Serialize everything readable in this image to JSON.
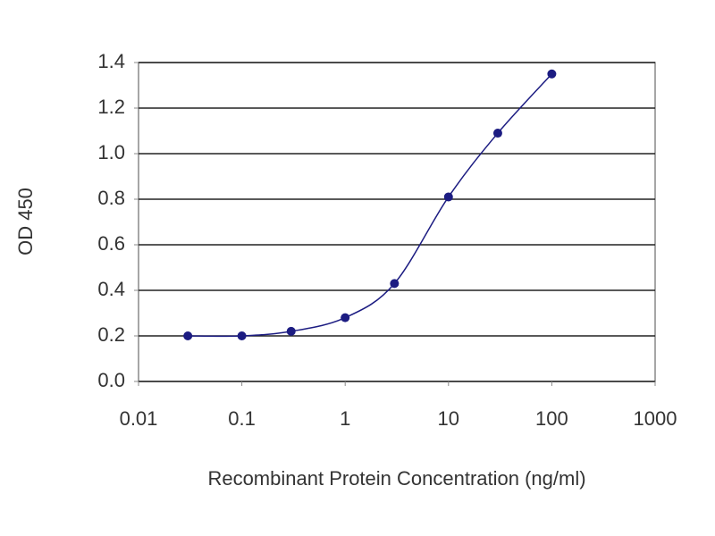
{
  "chart_data": {
    "type": "line",
    "x_label": "Recombinant Protein Concentration (ng/ml)",
    "y_label": "OD 450",
    "x": [
      0.03,
      0.1,
      0.3,
      1,
      3,
      10,
      30,
      100
    ],
    "series": [
      {
        "name": "OD 450",
        "color": "#1c1c82",
        "values": [
          0.2,
          0.2,
          0.22,
          0.28,
          0.43,
          0.81,
          1.09,
          1.35
        ]
      }
    ],
    "xlim": [
      0.01,
      1000
    ],
    "xticks": [
      0.01,
      0.1,
      1,
      10,
      100,
      1000
    ],
    "xscale": "log",
    "ylim": [
      0,
      1.4
    ],
    "yticks": [
      {
        "value": 0,
        "label": "0.0"
      },
      0.2,
      0.4,
      0.6,
      0.8,
      {
        "value": 1,
        "label": "1.0"
      },
      1.2,
      1.4
    ],
    "grid": true
  }
}
